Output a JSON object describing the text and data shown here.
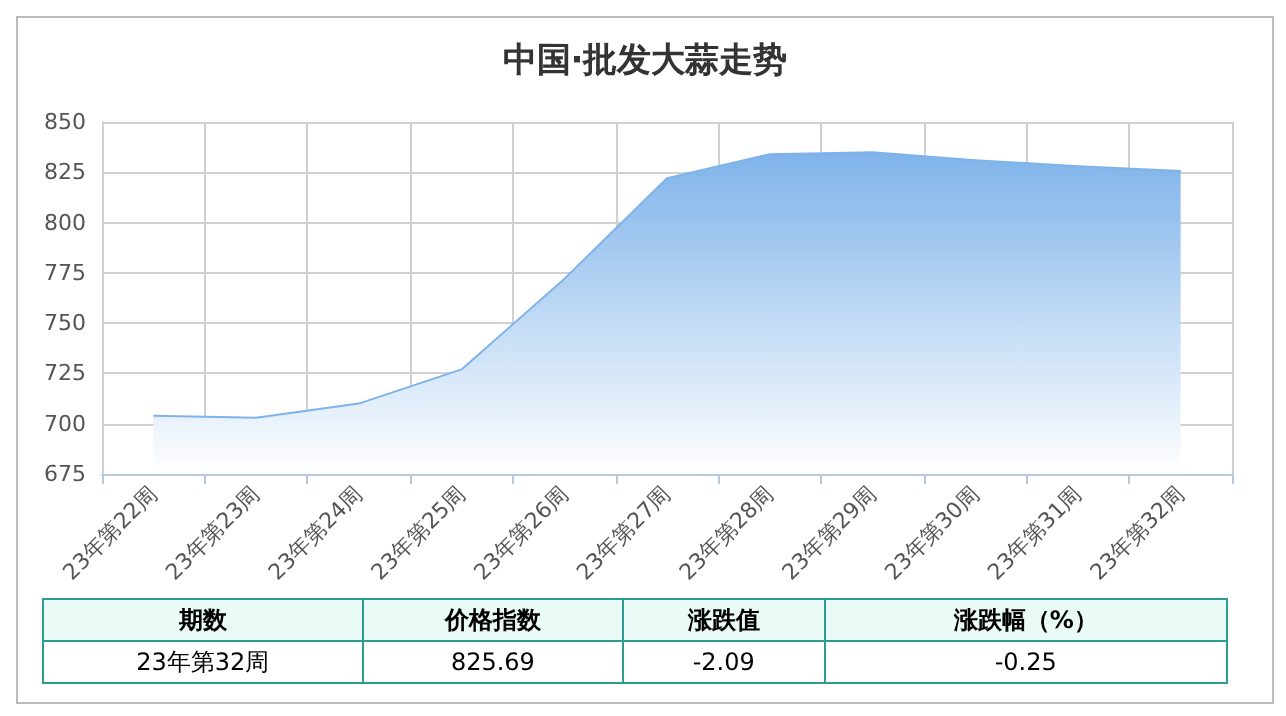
{
  "chart_data": {
    "type": "area",
    "title": "中国·批发大蒜走势",
    "categories": [
      "23年第22周",
      "23年第23周",
      "23年第24周",
      "23年第25周",
      "23年第26周",
      "23年第27周",
      "23年第28周",
      "23年第29周",
      "23年第30周",
      "23年第31周",
      "23年第32周"
    ],
    "series": [
      {
        "color": "#7eb3ea",
        "values": [
          704,
          703,
          710,
          727,
          772,
          822,
          834,
          835,
          831,
          828,
          825.69
        ]
      }
    ],
    "ylim": [
      675,
      850
    ],
    "yticks": [
      675,
      700,
      725,
      750,
      775,
      800,
      825,
      850
    ],
    "grid": true,
    "marker": "none",
    "line_style": "solid",
    "annotations": [
      "期数",
      "价格指数",
      "涨跌值",
      "涨跌幅（%）",
      "23年第32周",
      "825.69",
      "-2.09",
      "-0.25"
    ]
  }
}
